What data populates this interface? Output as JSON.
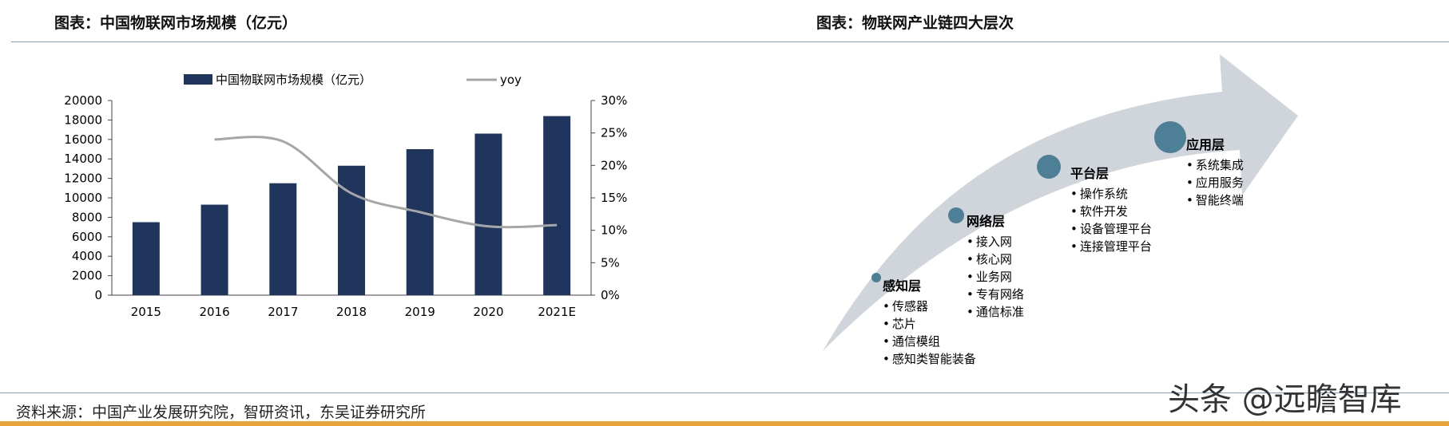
{
  "left_panel": {
    "title": "图表：中国物联网市场规模（亿元）"
  },
  "right_panel": {
    "title": "图表：物联网产业链四大层次"
  },
  "colors": {
    "bar": "#1f355e",
    "line": "#a6a6a6",
    "rule": "#7fa1c9",
    "arrow": "#cfd5db",
    "node": "#4d7f96",
    "bottom_bar": "#e8a23a"
  },
  "chart_data": {
    "type": "bar",
    "categories": [
      "2015",
      "2016",
      "2017",
      "2018",
      "2019",
      "2020",
      "2021E"
    ],
    "series": [
      {
        "name": "中国物联网市场规模（亿元）",
        "type": "bar",
        "axis": "left",
        "values": [
          7500,
          9300,
          11500,
          13300,
          15000,
          16600,
          18400
        ]
      },
      {
        "name": "yoy",
        "type": "line",
        "axis": "right",
        "values": [
          null,
          24.0,
          23.7,
          15.7,
          12.8,
          10.6,
          10.8
        ]
      }
    ],
    "left_axis": {
      "ylim": [
        0,
        20000
      ],
      "ticks": [
        "0",
        "2000",
        "4000",
        "6000",
        "8000",
        "10000",
        "12000",
        "14000",
        "16000",
        "18000",
        "20000"
      ]
    },
    "right_axis": {
      "ylim": [
        0,
        30
      ],
      "ticks": [
        "0%",
        "5%",
        "10%",
        "15%",
        "20%",
        "25%",
        "30%"
      ]
    },
    "legend_placement": "top",
    "grid": false
  },
  "industry_chain": {
    "layers": [
      {
        "name": "感知层",
        "items": [
          "传感器",
          "芯片",
          "通信模组",
          "感知类智能装备"
        ]
      },
      {
        "name": "网络层",
        "items": [
          "接入网",
          "核心网",
          "业务网",
          "专有网络",
          "通信标准"
        ]
      },
      {
        "name": "平台层",
        "items": [
          "操作系统",
          "软件开发",
          "设备管理平台",
          "连接管理平台"
        ]
      },
      {
        "name": "应用层",
        "items": [
          "系统集成",
          "应用服务",
          "智能终端"
        ]
      }
    ]
  },
  "footer": {
    "source": "资料来源：中国产业发展研究院，智研资讯，东吴证券研究所"
  },
  "watermark": "头条 @远瞻智库"
}
